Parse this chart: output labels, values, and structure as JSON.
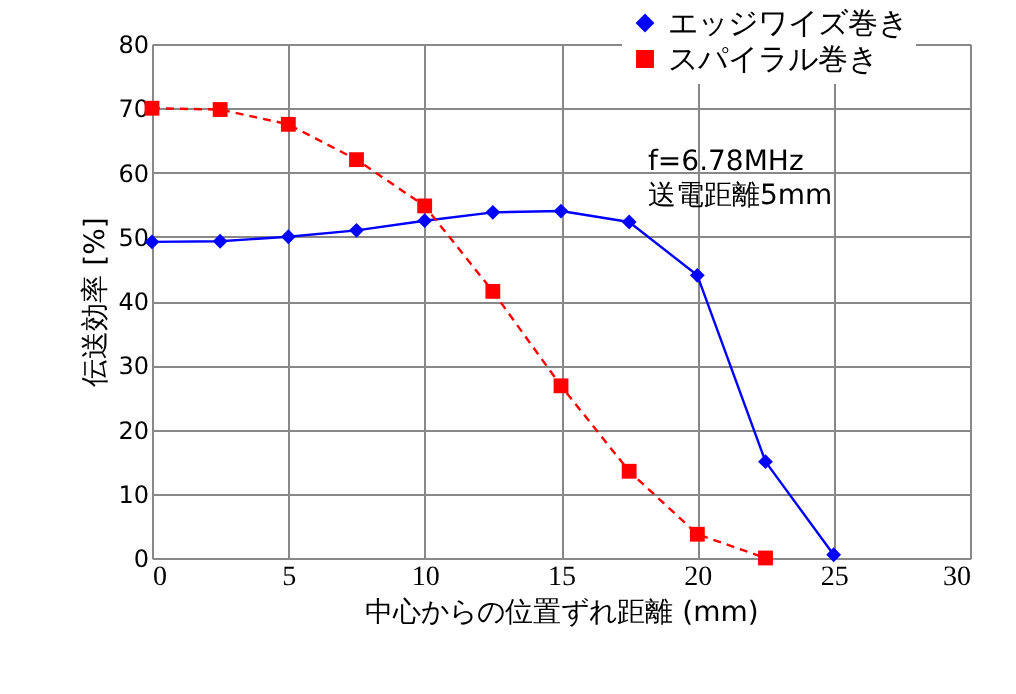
{
  "chart_data": {
    "type": "line",
    "xlabel": "中心からの位置ずれ距離 (mm)",
    "ylabel": "伝送効率 [%]",
    "annotations": [
      "f=6.78MHz",
      "送電距離5mm"
    ],
    "x": [
      0,
      2.5,
      5,
      7.5,
      10,
      12.5,
      15,
      17.5,
      20,
      22.5,
      25
    ],
    "series": [
      {
        "name": "エッジワイズ巻き",
        "color": "#0000ff",
        "marker": "diamond",
        "line_style": "solid",
        "values": [
          49.2,
          49.3,
          50,
          51,
          52.5,
          53.8,
          54,
          52.3,
          44,
          15,
          0.5
        ]
      },
      {
        "name": "スパイラル巻き",
        "color": "#ff0000",
        "marker": "square",
        "line_style": "dashed",
        "values": [
          70,
          69.8,
          67.5,
          62,
          54.8,
          41.5,
          26.8,
          13.5,
          3.7,
          0,
          null
        ]
      }
    ],
    "xlim": [
      0,
      30
    ],
    "xticks": [
      0,
      5,
      10,
      15,
      20,
      25,
      30
    ],
    "ylim": [
      0,
      80
    ],
    "yticks": [
      0,
      10,
      20,
      30,
      40,
      50,
      60,
      70,
      80
    ],
    "grid": true,
    "legend": "top right"
  }
}
